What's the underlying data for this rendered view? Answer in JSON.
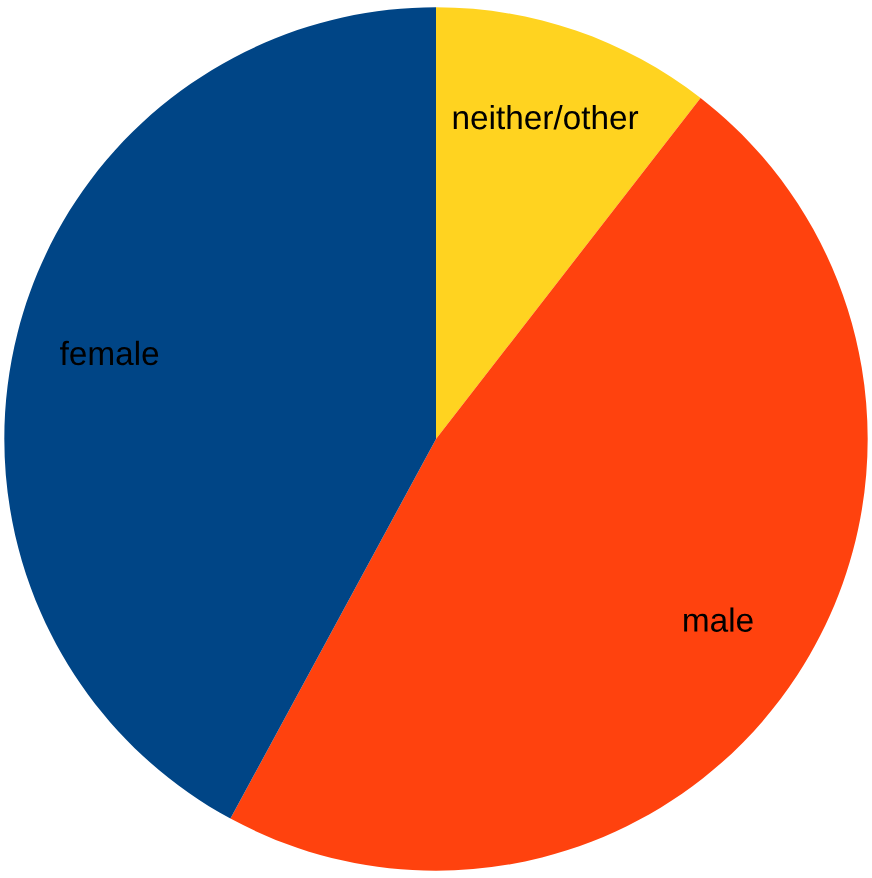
{
  "chart_data": {
    "type": "pie",
    "categories": [
      "neither/other",
      "male",
      "female"
    ],
    "values": [
      10.5,
      47.4,
      42.1
    ],
    "colors": [
      "#ffd320",
      "#ff420e",
      "#004586"
    ]
  }
}
